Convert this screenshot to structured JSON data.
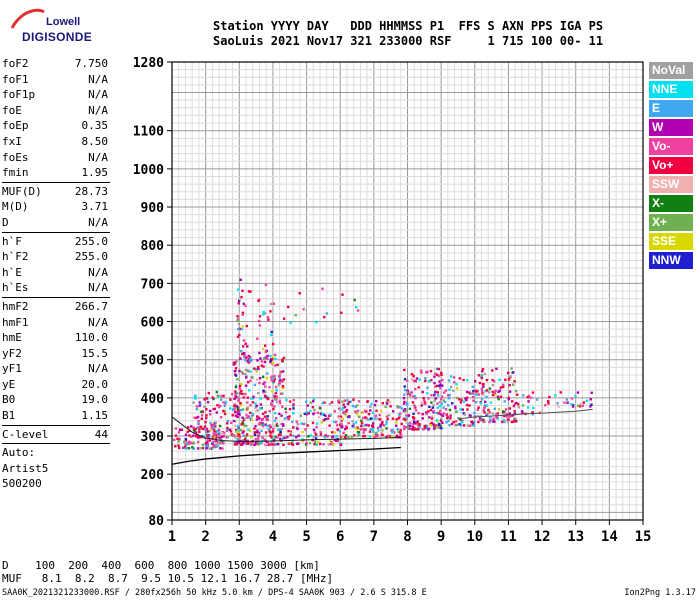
{
  "logo": {
    "line1": "Lowell",
    "line2": "DIGISONDE"
  },
  "header": {
    "labels": "Station YYYY DAY   DDD HHMMSS P1  FFS S AXN PPS IGA PS",
    "values": "SaoLuis 2021 Nov17 321 233000 RSF     1 715 100 00- 11"
  },
  "params": {
    "g1": [
      {
        "label": "foF2",
        "value": "7.750"
      },
      {
        "label": "foF1",
        "value": "N/A"
      },
      {
        "label": "foF1p",
        "value": "N/A"
      },
      {
        "label": "foE",
        "value": "N/A"
      },
      {
        "label": "foEp",
        "value": "0.35"
      },
      {
        "label": "fxI",
        "value": "8.50"
      },
      {
        "label": "foEs",
        "value": "N/A"
      },
      {
        "label": "fmin",
        "value": "1.95"
      }
    ],
    "g2": [
      {
        "label": "MUF(D)",
        "value": "28.73"
      },
      {
        "label": "M(D)",
        "value": "3.71"
      },
      {
        "label": "D",
        "value": "N/A"
      }
    ],
    "g3": [
      {
        "label": "h`F",
        "value": "255.0"
      },
      {
        "label": "h`F2",
        "value": "255.0"
      },
      {
        "label": "h`E",
        "value": "N/A"
      },
      {
        "label": "h`Es",
        "value": "N/A"
      }
    ],
    "g4": [
      {
        "label": "hmF2",
        "value": "266.7"
      },
      {
        "label": "hmF1",
        "value": "N/A"
      },
      {
        "label": "hmE",
        "value": "110.0"
      },
      {
        "label": "yF2",
        "value": "15.5"
      },
      {
        "label": "yF1",
        "value": "N/A"
      },
      {
        "label": "yE",
        "value": "20.0"
      },
      {
        "label": "B0",
        "value": "19.0"
      },
      {
        "label": "B1",
        "value": "1.15"
      }
    ],
    "g5": [
      {
        "label": "C-level",
        "value": "44"
      }
    ],
    "auto": [
      "Auto:",
      "Artist5",
      "500200"
    ]
  },
  "legend": [
    {
      "label": "NoVal",
      "color": "#a0a0a0"
    },
    {
      "label": "NNE",
      "color": "#00e0f0"
    },
    {
      "label": "E",
      "color": "#40a8f0"
    },
    {
      "label": "W",
      "color": "#b000b0"
    },
    {
      "label": "Vo-",
      "color": "#f040a0"
    },
    {
      "label": "Vo+",
      "color": "#f00040"
    },
    {
      "label": "SSW",
      "color": "#f0b0b0"
    },
    {
      "label": "X-",
      "color": "#108010"
    },
    {
      "label": "X+",
      "color": "#70b050"
    },
    {
      "label": "SSE",
      "color": "#d8d800"
    },
    {
      "label": "NNW",
      "color": "#2020d0"
    }
  ],
  "footer": {
    "row1": "D    100  200  400  600  800 1000 1500 3000 [km]",
    "row2": "MUF   8.1  8.2  8.7  9.5 10.5 12.1 16.7 28.7 [MHz]",
    "file": "SAA0K_2021321233000.RSF / 280fx256h 50 kHz 5.0 km / DPS-4 SAA0K 903 / 2.6 S 315.8 E",
    "version": "Ion2Png 1.3.17"
  },
  "chart_data": {
    "type": "scatter",
    "title": "",
    "xlabel": "",
    "ylabel": "",
    "xlim": [
      1,
      15
    ],
    "ylim": [
      80,
      1280
    ],
    "x_ticks": [
      1,
      2,
      3,
      4,
      5,
      6,
      7,
      8,
      9,
      10,
      11,
      12,
      13,
      14,
      15
    ],
    "y_ticks": [
      80,
      200,
      300,
      400,
      500,
      600,
      700,
      800,
      900,
      1000,
      1100,
      1280
    ],
    "grid": true,
    "x_scale": "linear",
    "y_scale": "linear",
    "series": [
      {
        "color_key": "echo-clusters",
        "clusters": [
          {
            "x": [
              1.0,
              2.5
            ],
            "y": [
              270,
              330
            ],
            "density": 1.0
          },
          {
            "x": [
              1.6,
              3.0
            ],
            "y": [
              300,
              420
            ],
            "density": 0.6
          },
          {
            "x": [
              2.8,
              4.3
            ],
            "y": [
              280,
              520
            ],
            "density": 0.7
          },
          {
            "x": [
              2.9,
              3.3
            ],
            "y": [
              500,
              720
            ],
            "density": 0.3
          },
          {
            "x": [
              3.5,
              4.0
            ],
            "y": [
              500,
              700
            ],
            "density": 0.2
          },
          {
            "x": [
              4.3,
              6.0
            ],
            "y": [
              280,
              400
            ],
            "density": 0.5
          },
          {
            "x": [
              6.0,
              7.8
            ],
            "y": [
              300,
              400
            ],
            "density": 0.7
          },
          {
            "x": [
              7.8,
              9.0
            ],
            "y": [
              320,
              480
            ],
            "density": 0.7
          },
          {
            "x": [
              9.0,
              10.0
            ],
            "y": [
              330,
              460
            ],
            "density": 0.5
          },
          {
            "x": [
              10.0,
              11.2
            ],
            "y": [
              340,
              480
            ],
            "density": 0.6
          },
          {
            "x": [
              11.2,
              12.0
            ],
            "y": [
              360,
              420
            ],
            "density": 0.3
          },
          {
            "x": [
              12.0,
              13.6
            ],
            "y": [
              380,
              420
            ],
            "density": 0.3
          },
          {
            "x": [
              3.5,
              6.5
            ],
            "y": [
              600,
              700
            ],
            "density": 0.04
          }
        ]
      }
    ],
    "trace": {
      "x": [
        1.0,
        1.5,
        2.0,
        3.0,
        4.0,
        5.0,
        6.0,
        7.0,
        7.8
      ],
      "y": [
        226,
        234,
        240,
        248,
        254,
        258,
        262,
        266,
        270
      ]
    },
    "trace2": {
      "x": [
        1.0,
        1.3,
        1.6,
        2.0,
        2.5,
        3.0,
        4.0,
        5.0,
        6.0,
        7.0,
        7.8
      ],
      "y": [
        350,
        330,
        310,
        295,
        288,
        286,
        287,
        290,
        292,
        294,
        296
      ]
    },
    "trace3": {
      "x": [
        9.5,
        10.0,
        11.0,
        11.5,
        12.0,
        13.0,
        13.5
      ],
      "y": [
        345,
        350,
        355,
        358,
        360,
        365,
        370
      ]
    }
  }
}
